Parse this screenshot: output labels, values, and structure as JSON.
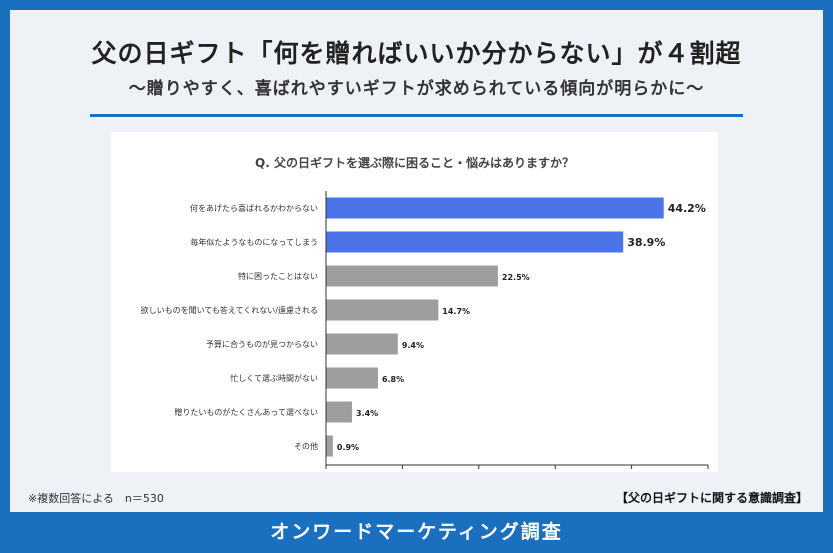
{
  "header": {
    "title": "父の日ギフト「何を贈ればいいか分からない」が４割超",
    "subtitle": "～贈りやすく、喜ばれやすいギフトが求められている傾向が明らかに～"
  },
  "colors": {
    "highlight": "#4a73e8",
    "normal": "#9e9e9e",
    "brand": "#1b6fbf"
  },
  "chart_data": {
    "type": "bar",
    "orientation": "horizontal",
    "title": "Q.  父の日ギフトを選ぶ際に困ること・悩みはありますか？",
    "categories": [
      "何をあげたら喜ばれるかわからない",
      "毎年似たようなものになってしまう",
      "特に困ったことはない",
      "欲しいものを聞いても答えてくれない/遠慮される",
      "予算に合うものが見つからない",
      "忙しくて選ぶ時間がない",
      "贈りたいものがたくさんあって選べない",
      "その他"
    ],
    "values": [
      44.2,
      38.9,
      22.5,
      14.7,
      9.4,
      6.8,
      3.4,
      0.9
    ],
    "value_labels": [
      "44.2%",
      "38.9%",
      "22.5%",
      "14.7%",
      "9.4%",
      "6.8%",
      "3.4%",
      "0.9%"
    ],
    "highlighted": [
      true,
      true,
      false,
      false,
      false,
      false,
      false,
      false
    ],
    "xlim": [
      0,
      50
    ],
    "xticks": [
      "0%",
      "10%",
      "20%",
      "30%",
      "40%",
      "50%"
    ],
    "xtick_values": [
      0,
      10,
      20,
      30,
      40,
      50
    ],
    "grid": false
  },
  "notes": {
    "footnote": "※複数回答による　n＝530",
    "source": "【父の日ギフトに関する意識調査】"
  },
  "footer": {
    "brand": "オンワードマーケティング調査"
  }
}
